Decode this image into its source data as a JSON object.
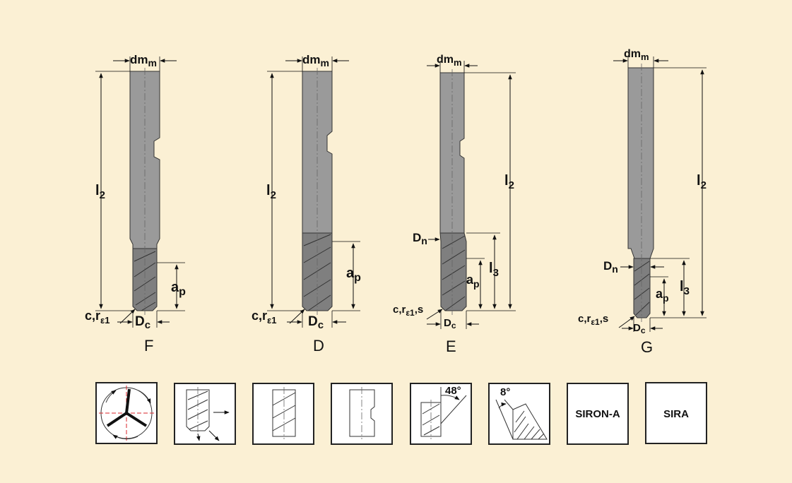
{
  "tools": [
    {
      "letter": "F",
      "dm": "dm",
      "dm_sub": "m",
      "l2": "l",
      "l2_sub": "2",
      "ap": "a",
      "ap_sub": "p",
      "dc": "D",
      "dc_sub": "c",
      "corner_c": "c,r",
      "corner_sub": "ε1"
    },
    {
      "letter": "D",
      "dm": "dm",
      "dm_sub": "m",
      "l2": "l",
      "l2_sub": "2",
      "ap": "a",
      "ap_sub": "p",
      "dc": "D",
      "dc_sub": "c",
      "corner_c": "c,r",
      "corner_sub": "ε1"
    },
    {
      "letter": "E",
      "dm": "dm",
      "dm_sub": "m",
      "l2": "l",
      "l2_sub": "2",
      "l3": "l",
      "l3_sub": "3",
      "ap": "a",
      "ap_sub": "p",
      "dn": "D",
      "dn_sub": "n",
      "dc": "D",
      "dc_sub": "c",
      "corner_c": "c,r",
      "corner_sub": "ε1",
      "corner_tail": ",s"
    },
    {
      "letter": "G",
      "dm": "dm",
      "dm_sub": "m",
      "l2": "l",
      "l2_sub": "2",
      "l3": "l",
      "l3_sub": "3",
      "ap": "a",
      "ap_sub": "p",
      "dn": "D",
      "dn_sub": "n",
      "dc": "D",
      "dc_sub": "c",
      "corner_c": "c,r",
      "corner_sub": "ε1",
      "corner_tail": ",s"
    }
  ],
  "icons": {
    "helix_angle": "48°",
    "clearance_angle": "8°",
    "coating_1": "SIRON-A",
    "coating_2": "SIRA"
  },
  "colors": {
    "background": "#fbf0d4",
    "shank": "#9a9a9a",
    "flute": "#7f7f7f",
    "centerline": "#d9262a"
  }
}
